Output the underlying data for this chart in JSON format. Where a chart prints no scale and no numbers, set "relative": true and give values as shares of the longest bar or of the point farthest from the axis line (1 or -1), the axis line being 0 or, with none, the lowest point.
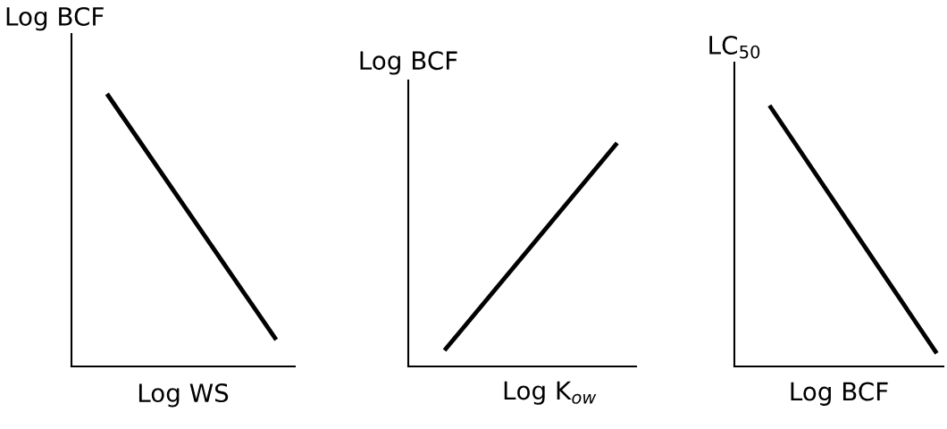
{
  "chart_data": [
    {
      "type": "line",
      "relative": true,
      "ylabel": "Log BCF",
      "xlabel": "Log WS",
      "categories": [
        null,
        null
      ],
      "series": [
        {
          "color": "#000000",
          "values": [
            1,
            0.098
          ]
        }
      ]
    },
    {
      "type": "line",
      "relative": true,
      "ylabel": "Log BCF",
      "xlabel": "Log K$_{ow}$",
      "categories": [
        null,
        null
      ],
      "series": [
        {
          "color": "#000000",
          "values": [
            0.072,
            1
          ]
        }
      ]
    },
    {
      "type": "line",
      "relative": true,
      "ylabel": "LC$_{50}$",
      "xlabel": "Log BCF",
      "categories": [
        null,
        null
      ],
      "series": [
        {
          "color": "#000000",
          "values": [
            1,
            0.05
          ]
        }
      ]
    }
  ]
}
